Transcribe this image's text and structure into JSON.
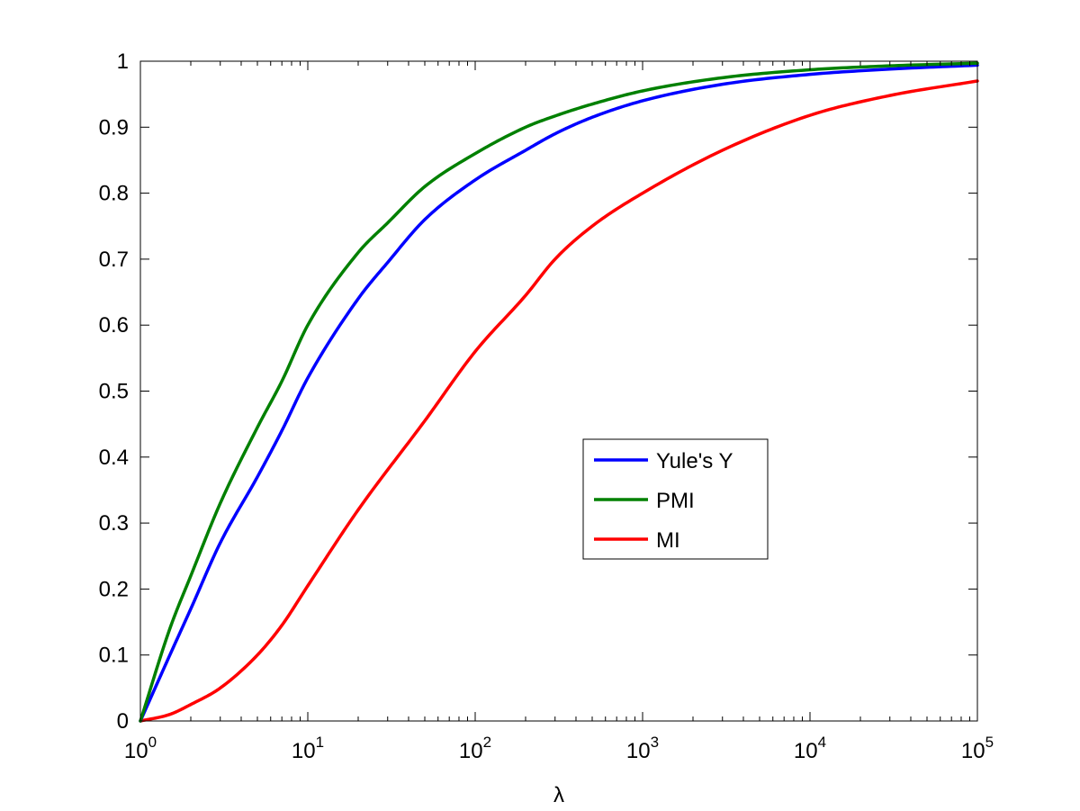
{
  "chart_data": {
    "type": "line",
    "title": "",
    "xlabel": "λ",
    "ylabel": "",
    "x_scale": "log",
    "xlim": [
      1,
      100000
    ],
    "ylim": [
      0,
      1
    ],
    "grid": false,
    "legend_position": "center-right",
    "x_tick_labels": [
      {
        "base": "10",
        "exp": "0"
      },
      {
        "base": "10",
        "exp": "1"
      },
      {
        "base": "10",
        "exp": "2"
      },
      {
        "base": "10",
        "exp": "3"
      },
      {
        "base": "10",
        "exp": "4"
      },
      {
        "base": "10",
        "exp": "5"
      }
    ],
    "y_tick_labels": [
      "0",
      "0.1",
      "0.2",
      "0.3",
      "0.4",
      "0.5",
      "0.6",
      "0.7",
      "0.8",
      "0.9",
      "1"
    ],
    "series": [
      {
        "name": "Yule's Y",
        "color": "#0000ff",
        "points": [
          [
            1,
            0
          ],
          [
            1.5,
            0.1
          ],
          [
            2,
            0.17
          ],
          [
            3,
            0.27
          ],
          [
            5,
            0.37
          ],
          [
            7,
            0.44
          ],
          [
            10,
            0.52
          ],
          [
            20,
            0.64
          ],
          [
            30,
            0.695
          ],
          [
            50,
            0.76
          ],
          [
            100,
            0.82
          ],
          [
            200,
            0.865
          ],
          [
            300,
            0.89
          ],
          [
            500,
            0.915
          ],
          [
            1000,
            0.94
          ],
          [
            3000,
            0.965
          ],
          [
            10000,
            0.98
          ],
          [
            30000,
            0.988
          ],
          [
            100000,
            0.994
          ]
        ]
      },
      {
        "name": "PMI",
        "color": "#008000",
        "points": [
          [
            1,
            0
          ],
          [
            1.5,
            0.14
          ],
          [
            2,
            0.22
          ],
          [
            3,
            0.33
          ],
          [
            5,
            0.445
          ],
          [
            7,
            0.515
          ],
          [
            10,
            0.6
          ],
          [
            20,
            0.71
          ],
          [
            30,
            0.755
          ],
          [
            50,
            0.81
          ],
          [
            100,
            0.86
          ],
          [
            200,
            0.9
          ],
          [
            300,
            0.917
          ],
          [
            500,
            0.935
          ],
          [
            1000,
            0.955
          ],
          [
            3000,
            0.975
          ],
          [
            10000,
            0.987
          ],
          [
            30000,
            0.993
          ],
          [
            100000,
            0.997
          ]
        ]
      },
      {
        "name": "MI",
        "color": "#ff0000",
        "points": [
          [
            1,
            0
          ],
          [
            1.5,
            0.01
          ],
          [
            2,
            0.025
          ],
          [
            3,
            0.05
          ],
          [
            5,
            0.1
          ],
          [
            7,
            0.145
          ],
          [
            10,
            0.205
          ],
          [
            20,
            0.32
          ],
          [
            50,
            0.455
          ],
          [
            100,
            0.56
          ],
          [
            200,
            0.645
          ],
          [
            300,
            0.7
          ],
          [
            500,
            0.75
          ],
          [
            1000,
            0.8
          ],
          [
            3000,
            0.865
          ],
          [
            10000,
            0.918
          ],
          [
            30000,
            0.948
          ],
          [
            100000,
            0.97
          ]
        ]
      }
    ]
  }
}
